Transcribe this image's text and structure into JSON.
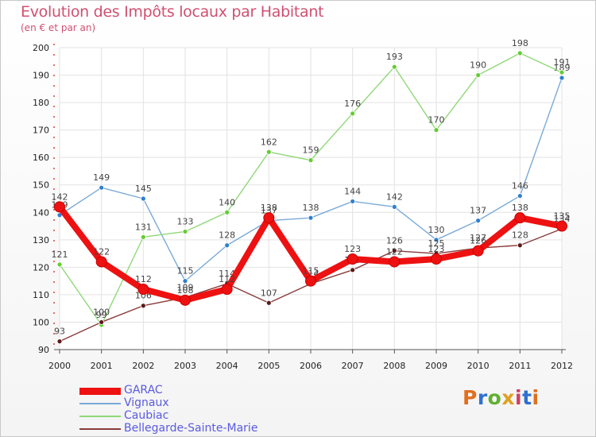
{
  "title": "Evolution des Impôts locaux par Habitant",
  "subtitle": "(en € et par an)",
  "logo": {
    "text": "Proxiti",
    "colors": [
      "#e07020",
      "#3070d0",
      "#60b030",
      "#e0a020",
      "#d04060",
      "#3070d0",
      "#e07020"
    ]
  },
  "chart_data": {
    "type": "line",
    "x": [
      2000,
      2001,
      2002,
      2003,
      2004,
      2005,
      2006,
      2007,
      2008,
      2009,
      2010,
      2011,
      2012
    ],
    "ylim": [
      90,
      200
    ],
    "yticks": [
      90,
      100,
      110,
      120,
      130,
      140,
      150,
      160,
      170,
      180,
      190,
      200
    ],
    "title": "Evolution des Impôts locaux par Habitant",
    "ylabel": "(en € et par an)",
    "xlabel": "",
    "series": [
      {
        "name": "GARAC",
        "color": "#ee1111",
        "marker": "#ee1111",
        "thick": true,
        "values": [
          142,
          122,
          112,
          108,
          112,
          138,
          115,
          123,
          122,
          123,
          126,
          138,
          135
        ]
      },
      {
        "name": "Vignaux",
        "color": "#7aaad8",
        "marker": "#2f7fd0",
        "thick": false,
        "values": [
          139,
          149,
          145,
          115,
          128,
          137,
          138,
          144,
          142,
          130,
          137,
          146,
          189
        ]
      },
      {
        "name": "Caubiac",
        "color": "#90d878",
        "marker": "#66cc33",
        "thick": false,
        "values": [
          121,
          99,
          131,
          133,
          140,
          162,
          159,
          176,
          193,
          170,
          190,
          198,
          191
        ]
      },
      {
        "name": "Bellegarde-Sainte-Marie",
        "color": "#8a3a3a",
        "marker": "#5a1a1a",
        "thick": false,
        "values": [
          93,
          100,
          106,
          109,
          114,
          107,
          114,
          119,
          126,
          125,
          127,
          128,
          134
        ]
      }
    ]
  }
}
